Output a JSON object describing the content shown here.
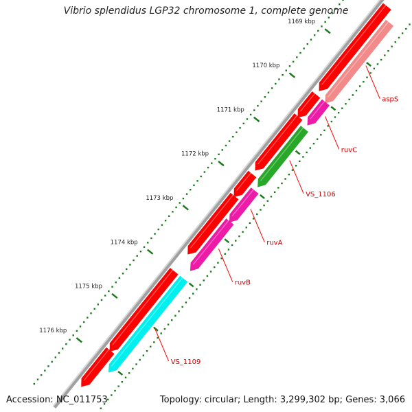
{
  "title": "Vibrio splendidus LGP32 chromosome 1, complete genome",
  "footer": {
    "accession": "Accession: NC_011753",
    "summary": "Topology: circular; Length: 3,299,302 bp; Genes: 3,066"
  },
  "colors": {
    "backbone": "#a0a0a0",
    "strand_plus": "#ff0000",
    "ticks": "#1a7a1a",
    "labels": "#cc0000",
    "leader": "#ff0000",
    "aspS": "#f28a8a",
    "ruvC": "#ee1aa8",
    "VS_1106": "#28a828",
    "ruvA": "#ee1aa8",
    "ruvB": "#ee1aa8",
    "VS_1109": "#00f0f0"
  },
  "ticks": [
    "1169 kbp",
    "1170 kbp",
    "1171 kbp",
    "1172 kbp",
    "1173 kbp",
    "1174 kbp",
    "1175 kbp",
    "1176 kbp"
  ],
  "genes": [
    {
      "name": "aspS",
      "start_kbp": 1168.2,
      "end_kbp": 1169.9,
      "color": "#f28a8a"
    },
    {
      "name": "ruvC",
      "start_kbp": 1170.0,
      "end_kbp": 1170.4,
      "color": "#ee1aa8"
    },
    {
      "name": "VS_1106",
      "start_kbp": 1170.6,
      "end_kbp": 1171.8,
      "color": "#28a828"
    },
    {
      "name": "ruvA",
      "start_kbp": 1172.0,
      "end_kbp": 1172.6,
      "color": "#ee1aa8"
    },
    {
      "name": "ruvB",
      "start_kbp": 1172.7,
      "end_kbp": 1173.7,
      "color": "#ee1aa8"
    },
    {
      "name": "VS_1109",
      "start_kbp": 1174.0,
      "end_kbp": 1176.0,
      "color": "#00f0f0"
    }
  ],
  "cds_plus": [
    {
      "start_kbp": 1168.0,
      "end_kbp": 1169.8
    },
    {
      "start_kbp": 1170.0,
      "end_kbp": 1170.4
    },
    {
      "start_kbp": 1170.5,
      "end_kbp": 1171.6
    },
    {
      "start_kbp": 1171.8,
      "end_kbp": 1172.2
    },
    {
      "start_kbp": 1172.3,
      "end_kbp": 1173.5
    },
    {
      "start_kbp": 1174.0,
      "end_kbp": 1175.7
    },
    {
      "start_kbp": 1175.8,
      "end_kbp": 1176.5
    }
  ]
}
